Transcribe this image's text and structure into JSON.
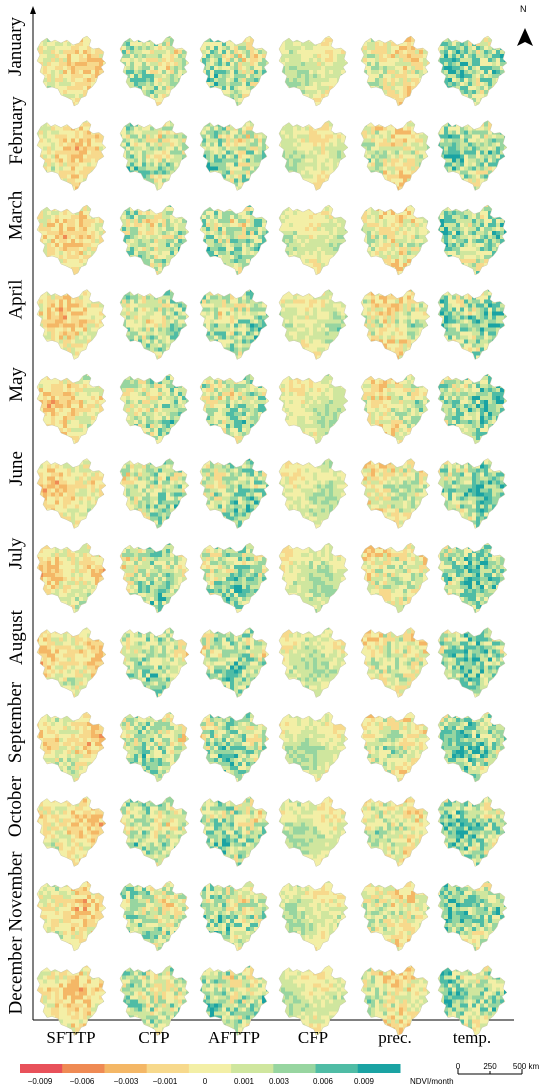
{
  "rows": [
    "January",
    "February",
    "March",
    "April",
    "May",
    "June",
    "July",
    "August",
    "September",
    "October",
    "November",
    "December"
  ],
  "columns": [
    "SFTTP",
    "CTP",
    "AFTTP",
    "CFP",
    "prec.",
    "temp."
  ],
  "legend": {
    "ticks": [
      "−0.009",
      "−0.006",
      "−0.003",
      "−0.001",
      "0",
      "0.001",
      "0.003",
      "0.006",
      "0.009"
    ],
    "unit": "NDVI/month",
    "colors": [
      "#e8515a",
      "#ef8a54",
      "#f4b766",
      "#f7d98c",
      "#f3efa6",
      "#cfe69e",
      "#97d5a0",
      "#4fbca5",
      "#1aa3a3"
    ]
  },
  "north": {
    "label": "N",
    "icon": "north-arrow-icon"
  },
  "scalebar": {
    "labels": [
      "0",
      "250",
      "500 km"
    ]
  }
}
